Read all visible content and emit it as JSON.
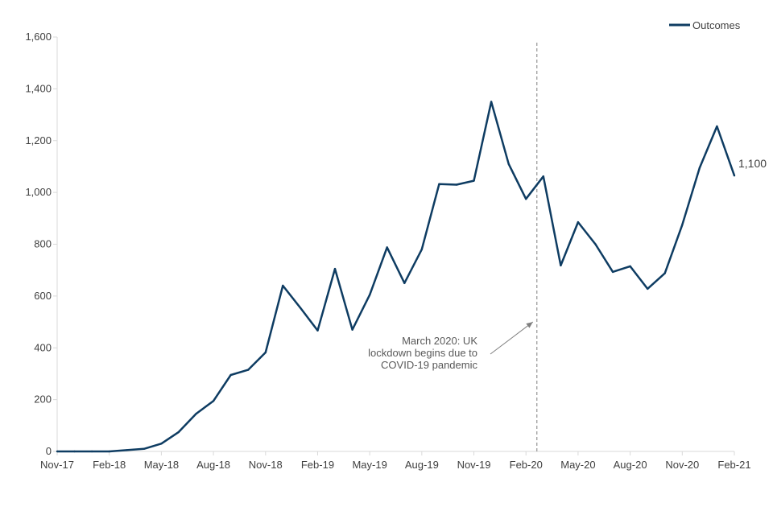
{
  "chart_data": {
    "type": "line",
    "title": "",
    "xlabel": "",
    "ylabel": "",
    "ylim": [
      0,
      1600
    ],
    "yticks": [
      0,
      200,
      400,
      600,
      800,
      1000,
      1200,
      1400,
      1600
    ],
    "ytick_labels": [
      "0",
      "200",
      "400",
      "600",
      "800",
      "1,000",
      "1,200",
      "1,400",
      "1,600"
    ],
    "x": [
      "Nov-17",
      "Dec-17",
      "Jan-18",
      "Feb-18",
      "Mar-18",
      "Apr-18",
      "May-18",
      "Jun-18",
      "Jul-18",
      "Aug-18",
      "Sep-18",
      "Oct-18",
      "Nov-18",
      "Dec-18",
      "Jan-19",
      "Feb-19",
      "Mar-19",
      "Apr-19",
      "May-19",
      "Jun-19",
      "Jul-19",
      "Aug-19",
      "Sep-19",
      "Oct-19",
      "Nov-19",
      "Dec-19",
      "Jan-20",
      "Feb-20",
      "Mar-20",
      "Apr-20",
      "May-20",
      "Jun-20",
      "Jul-20",
      "Aug-20",
      "Sep-20",
      "Oct-20",
      "Nov-20",
      "Dec-20",
      "Jan-21",
      "Feb-21"
    ],
    "xtick_labels": [
      {
        "index": 0,
        "label": "Nov-17"
      },
      {
        "index": 3,
        "label": "Feb-18"
      },
      {
        "index": 6,
        "label": "May-18"
      },
      {
        "index": 9,
        "label": "Aug-18"
      },
      {
        "index": 12,
        "label": "Nov-18"
      },
      {
        "index": 15,
        "label": "Feb-19"
      },
      {
        "index": 18,
        "label": "May-19"
      },
      {
        "index": 21,
        "label": "Aug-19"
      },
      {
        "index": 24,
        "label": "Nov-19"
      },
      {
        "index": 27,
        "label": "Feb-20"
      },
      {
        "index": 30,
        "label": "May-20"
      },
      {
        "index": 33,
        "label": "Aug-20"
      },
      {
        "index": 36,
        "label": "Nov-20"
      },
      {
        "index": 39,
        "label": "Feb-21"
      }
    ],
    "series": [
      {
        "name": "Outcomes",
        "color": "#0e3c62",
        "values": [
          0,
          0,
          0,
          0,
          5,
          10,
          30,
          75,
          145,
          195,
          295,
          315,
          382,
          640,
          555,
          467,
          705,
          470,
          605,
          788,
          650,
          780,
          1032,
          1030,
          1045,
          1350,
          1110,
          975,
          1062,
          718,
          885,
          800,
          693,
          715,
          628,
          688,
          875,
          1095,
          1255,
          1065
        ]
      }
    ],
    "legend": {
      "label": "Outcomes",
      "position": "top-right"
    },
    "end_label": "1,100",
    "vline": {
      "index": 28,
      "style": "dashed",
      "color": "#7f7f7f"
    },
    "annotation": {
      "lines": [
        "March 2020: UK",
        "lockdown begins due to",
        "COVID-19 pandemic"
      ],
      "arrow_to_value": 500
    }
  }
}
